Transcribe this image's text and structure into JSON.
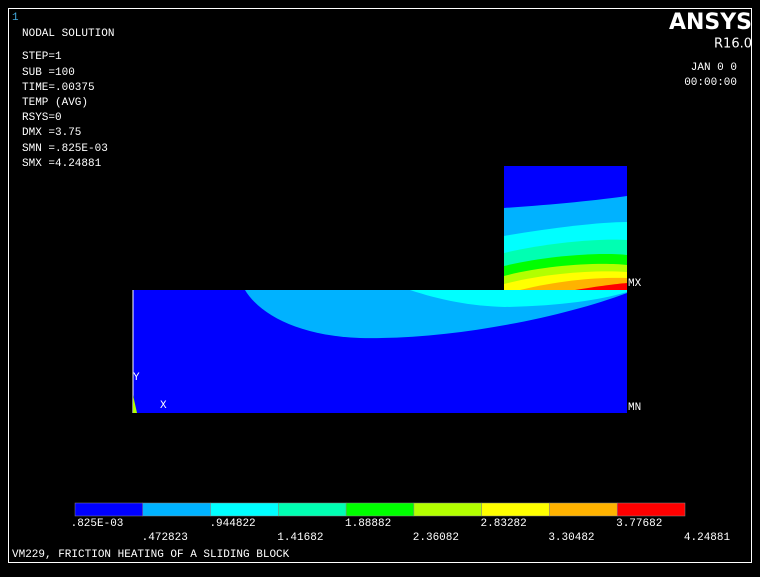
{
  "window_number": "1",
  "info": [
    "NODAL SOLUTION",
    "STEP=1",
    "SUB =100",
    "TIME=.00375",
    "TEMP      (AVG)",
    "RSYS=0",
    "DMX =3.75",
    "SMN =.825E-03",
    "SMX =4.24881"
  ],
  "logo": {
    "brand": "ANSYS",
    "version": "R16.0",
    "date": "JAN  0    0",
    "time": "00:00:00"
  },
  "markers": {
    "max": "MX",
    "min": "MN",
    "axis_y": "Y",
    "axis_x": "X"
  },
  "legend": {
    "colors": [
      "#0000ff",
      "#00b2ff",
      "#00ffff",
      "#00ffb2",
      "#00ff00",
      "#b2ff00",
      "#ffff00",
      "#ffb200",
      "#ff0000"
    ],
    "labels": [
      ".825E-03",
      ".472823",
      ".944822",
      "1.41682",
      "1.88882",
      "2.36082",
      "2.83282",
      "3.30482",
      "3.77682",
      "4.24881"
    ]
  },
  "footer": "VM229, FRICTION HEATING OF A SLIDING BLOCK"
}
